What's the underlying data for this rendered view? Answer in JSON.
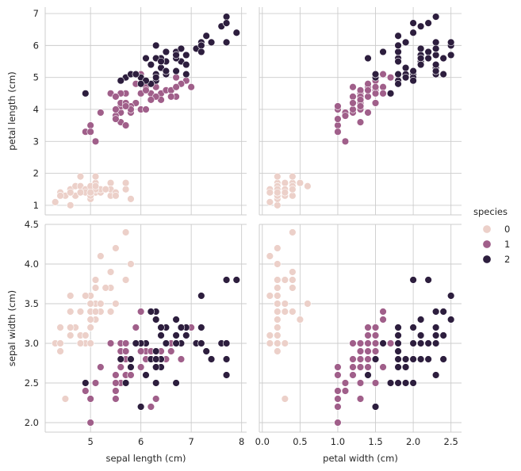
{
  "chart_data": {
    "type": "scatter",
    "legend": {
      "title": "species",
      "placement": "right",
      "entries": [
        {
          "label": "0",
          "color": "#ecd0c9"
        },
        {
          "label": "1",
          "color": "#a05f8a"
        },
        {
          "label": "2",
          "color": "#2d1e3e"
        }
      ]
    },
    "columns": [
      {
        "xlabel": "sepal length (cm)",
        "xlim": [
          4.1,
          8.1
        ],
        "xticks": [
          5,
          6,
          7,
          8
        ],
        "xtick_labels": [
          "5",
          "6",
          "7",
          "8"
        ]
      },
      {
        "xlabel": "petal width (cm)",
        "xlim": [
          -0.04,
          2.64
        ],
        "xticks": [
          0.0,
          0.5,
          1.0,
          1.5,
          2.0,
          2.5
        ],
        "xtick_labels": [
          "0.0",
          "0.5",
          "1.0",
          "1.5",
          "2.0",
          "2.5"
        ]
      }
    ],
    "rows": [
      {
        "ylabel": "petal length (cm)",
        "ylim": [
          0.7,
          7.2
        ],
        "yticks": [
          1,
          2,
          3,
          4,
          5,
          6,
          7
        ],
        "ytick_labels": [
          "1",
          "2",
          "3",
          "4",
          "5",
          "6",
          "7"
        ]
      },
      {
        "ylabel": "sepal width (cm)",
        "ylim": [
          1.88,
          4.5
        ],
        "yticks": [
          2.0,
          2.5,
          3.0,
          3.5,
          4.0,
          4.5
        ],
        "ytick_labels": [
          "2.0",
          "2.5",
          "3.0",
          "3.5",
          "4.0",
          "4.5"
        ]
      }
    ],
    "fields": [
      "sepal_length",
      "sepal_width",
      "petal_length",
      "petal_width",
      "species"
    ],
    "rows_data": [
      [
        5.1,
        3.5,
        1.4,
        0.2,
        0
      ],
      [
        4.9,
        3.0,
        1.4,
        0.2,
        0
      ],
      [
        4.7,
        3.2,
        1.3,
        0.2,
        0
      ],
      [
        4.6,
        3.1,
        1.5,
        0.2,
        0
      ],
      [
        5.0,
        3.6,
        1.4,
        0.2,
        0
      ],
      [
        5.4,
        3.9,
        1.7,
        0.4,
        0
      ],
      [
        4.6,
        3.4,
        1.4,
        0.3,
        0
      ],
      [
        5.0,
        3.4,
        1.5,
        0.2,
        0
      ],
      [
        4.4,
        2.9,
        1.4,
        0.2,
        0
      ],
      [
        4.9,
        3.1,
        1.5,
        0.1,
        0
      ],
      [
        5.4,
        3.7,
        1.5,
        0.2,
        0
      ],
      [
        4.8,
        3.4,
        1.6,
        0.2,
        0
      ],
      [
        4.8,
        3.0,
        1.4,
        0.1,
        0
      ],
      [
        4.3,
        3.0,
        1.1,
        0.1,
        0
      ],
      [
        5.8,
        4.0,
        1.2,
        0.2,
        0
      ],
      [
        5.7,
        4.4,
        1.5,
        0.4,
        0
      ],
      [
        5.4,
        3.9,
        1.3,
        0.4,
        0
      ],
      [
        5.1,
        3.5,
        1.4,
        0.3,
        0
      ],
      [
        5.7,
        3.8,
        1.7,
        0.3,
        0
      ],
      [
        5.1,
        3.8,
        1.5,
        0.3,
        0
      ],
      [
        5.4,
        3.4,
        1.7,
        0.2,
        0
      ],
      [
        5.1,
        3.7,
        1.5,
        0.4,
        0
      ],
      [
        4.6,
        3.6,
        1.0,
        0.2,
        0
      ],
      [
        5.1,
        3.3,
        1.7,
        0.5,
        0
      ],
      [
        4.8,
        3.4,
        1.9,
        0.2,
        0
      ],
      [
        5.0,
        3.0,
        1.6,
        0.2,
        0
      ],
      [
        5.0,
        3.4,
        1.6,
        0.4,
        0
      ],
      [
        5.2,
        3.5,
        1.5,
        0.2,
        0
      ],
      [
        5.2,
        3.4,
        1.4,
        0.2,
        0
      ],
      [
        4.7,
        3.2,
        1.6,
        0.2,
        0
      ],
      [
        4.8,
        3.1,
        1.6,
        0.2,
        0
      ],
      [
        5.4,
        3.4,
        1.5,
        0.4,
        0
      ],
      [
        5.2,
        4.1,
        1.5,
        0.1,
        0
      ],
      [
        5.5,
        4.2,
        1.4,
        0.2,
        0
      ],
      [
        4.9,
        3.1,
        1.5,
        0.2,
        0
      ],
      [
        5.0,
        3.2,
        1.2,
        0.2,
        0
      ],
      [
        5.5,
        3.5,
        1.3,
        0.2,
        0
      ],
      [
        4.9,
        3.6,
        1.4,
        0.1,
        0
      ],
      [
        4.4,
        3.0,
        1.3,
        0.2,
        0
      ],
      [
        5.1,
        3.4,
        1.5,
        0.2,
        0
      ],
      [
        5.0,
        3.5,
        1.3,
        0.3,
        0
      ],
      [
        4.5,
        2.3,
        1.3,
        0.3,
        0
      ],
      [
        4.4,
        3.2,
        1.3,
        0.2,
        0
      ],
      [
        5.0,
        3.5,
        1.6,
        0.6,
        0
      ],
      [
        5.1,
        3.8,
        1.9,
        0.4,
        0
      ],
      [
        4.8,
        3.0,
        1.4,
        0.3,
        0
      ],
      [
        5.1,
        3.8,
        1.6,
        0.2,
        0
      ],
      [
        4.6,
        3.2,
        1.4,
        0.2,
        0
      ],
      [
        5.3,
        3.7,
        1.5,
        0.2,
        0
      ],
      [
        5.0,
        3.3,
        1.4,
        0.2,
        0
      ],
      [
        7.0,
        3.2,
        4.7,
        1.4,
        1
      ],
      [
        6.4,
        3.2,
        4.5,
        1.5,
        1
      ],
      [
        6.9,
        3.1,
        4.9,
        1.5,
        1
      ],
      [
        5.5,
        2.3,
        4.0,
        1.3,
        1
      ],
      [
        6.5,
        2.8,
        4.6,
        1.5,
        1
      ],
      [
        5.7,
        2.8,
        4.5,
        1.3,
        1
      ],
      [
        6.3,
        3.3,
        4.7,
        1.6,
        1
      ],
      [
        4.9,
        2.4,
        3.3,
        1.0,
        1
      ],
      [
        6.6,
        2.9,
        4.6,
        1.3,
        1
      ],
      [
        5.2,
        2.7,
        3.9,
        1.4,
        1
      ],
      [
        5.0,
        2.0,
        3.5,
        1.0,
        1
      ],
      [
        5.9,
        3.0,
        4.2,
        1.5,
        1
      ],
      [
        6.0,
        2.2,
        4.0,
        1.0,
        1
      ],
      [
        6.1,
        2.9,
        4.7,
        1.4,
        1
      ],
      [
        5.6,
        2.9,
        3.6,
        1.3,
        1
      ],
      [
        6.7,
        3.1,
        4.4,
        1.4,
        1
      ],
      [
        5.6,
        3.0,
        4.5,
        1.5,
        1
      ],
      [
        5.8,
        2.7,
        4.1,
        1.0,
        1
      ],
      [
        6.2,
        2.2,
        4.5,
        1.5,
        1
      ],
      [
        5.6,
        2.5,
        3.9,
        1.1,
        1
      ],
      [
        5.9,
        3.2,
        4.8,
        1.8,
        1
      ],
      [
        6.1,
        2.8,
        4.0,
        1.3,
        1
      ],
      [
        6.3,
        2.5,
        4.9,
        1.5,
        1
      ],
      [
        6.1,
        2.8,
        4.7,
        1.2,
        1
      ],
      [
        6.4,
        2.9,
        4.3,
        1.3,
        1
      ],
      [
        6.6,
        3.0,
        4.4,
        1.4,
        1
      ],
      [
        6.8,
        2.8,
        4.8,
        1.4,
        1
      ],
      [
        6.7,
        3.0,
        5.0,
        1.7,
        1
      ],
      [
        6.0,
        2.9,
        4.5,
        1.5,
        1
      ],
      [
        5.7,
        2.6,
        3.5,
        1.0,
        1
      ],
      [
        5.5,
        2.4,
        3.8,
        1.1,
        1
      ],
      [
        5.5,
        2.4,
        3.7,
        1.0,
        1
      ],
      [
        5.8,
        2.7,
        3.9,
        1.2,
        1
      ],
      [
        6.0,
        2.7,
        5.1,
        1.6,
        1
      ],
      [
        5.4,
        3.0,
        4.5,
        1.5,
        1
      ],
      [
        6.0,
        3.4,
        4.5,
        1.6,
        1
      ],
      [
        6.7,
        3.1,
        4.7,
        1.5,
        1
      ],
      [
        6.3,
        2.3,
        4.4,
        1.3,
        1
      ],
      [
        5.6,
        3.0,
        4.1,
        1.3,
        1
      ],
      [
        5.5,
        2.5,
        4.0,
        1.3,
        1
      ],
      [
        5.5,
        2.6,
        4.4,
        1.2,
        1
      ],
      [
        6.1,
        3.0,
        4.6,
        1.4,
        1
      ],
      [
        5.8,
        2.6,
        4.0,
        1.2,
        1
      ],
      [
        5.0,
        2.3,
        3.3,
        1.0,
        1
      ],
      [
        5.6,
        2.7,
        4.2,
        1.3,
        1
      ],
      [
        5.7,
        3.0,
        4.2,
        1.2,
        1
      ],
      [
        5.7,
        2.9,
        4.2,
        1.3,
        1
      ],
      [
        6.2,
        2.9,
        4.3,
        1.3,
        1
      ],
      [
        5.1,
        2.5,
        3.0,
        1.1,
        1
      ],
      [
        5.7,
        2.8,
        4.1,
        1.3,
        1
      ],
      [
        6.3,
        3.3,
        6.0,
        2.5,
        2
      ],
      [
        5.8,
        2.7,
        5.1,
        1.9,
        2
      ],
      [
        7.1,
        3.0,
        5.9,
        2.1,
        2
      ],
      [
        6.3,
        2.9,
        5.6,
        1.8,
        2
      ],
      [
        6.5,
        3.0,
        5.8,
        2.2,
        2
      ],
      [
        7.6,
        3.0,
        6.6,
        2.1,
        2
      ],
      [
        4.9,
        2.5,
        4.5,
        1.7,
        2
      ],
      [
        7.3,
        2.9,
        6.3,
        1.8,
        2
      ],
      [
        6.7,
        2.5,
        5.8,
        1.8,
        2
      ],
      [
        7.2,
        3.6,
        6.1,
        2.5,
        2
      ],
      [
        6.5,
        3.2,
        5.1,
        2.0,
        2
      ],
      [
        6.4,
        2.7,
        5.3,
        1.9,
        2
      ],
      [
        6.8,
        3.0,
        5.5,
        2.1,
        2
      ],
      [
        5.7,
        2.5,
        5.0,
        2.0,
        2
      ],
      [
        5.8,
        2.8,
        5.1,
        2.4,
        2
      ],
      [
        6.4,
        3.2,
        5.3,
        2.3,
        2
      ],
      [
        6.5,
        3.0,
        5.5,
        1.8,
        2
      ],
      [
        7.7,
        3.8,
        6.7,
        2.2,
        2
      ],
      [
        7.7,
        2.6,
        6.9,
        2.3,
        2
      ],
      [
        6.0,
        2.2,
        5.0,
        1.5,
        2
      ],
      [
        6.9,
        3.2,
        5.7,
        2.3,
        2
      ],
      [
        5.6,
        2.8,
        4.9,
        2.0,
        2
      ],
      [
        7.7,
        2.8,
        6.7,
        2.0,
        2
      ],
      [
        6.3,
        2.7,
        4.9,
        1.8,
        2
      ],
      [
        6.7,
        3.3,
        5.7,
        2.1,
        2
      ],
      [
        7.2,
        3.2,
        6.0,
        1.8,
        2
      ],
      [
        6.2,
        2.8,
        4.8,
        1.8,
        2
      ],
      [
        6.1,
        3.0,
        4.9,
        1.8,
        2
      ],
      [
        6.4,
        2.8,
        5.6,
        2.1,
        2
      ],
      [
        7.2,
        3.0,
        5.8,
        1.6,
        2
      ],
      [
        7.4,
        2.8,
        6.1,
        1.9,
        2
      ],
      [
        7.9,
        3.8,
        6.4,
        2.0,
        2
      ],
      [
        6.4,
        2.8,
        5.6,
        2.2,
        2
      ],
      [
        6.3,
        2.8,
        5.1,
        1.5,
        2
      ],
      [
        6.1,
        2.6,
        5.6,
        1.4,
        2
      ],
      [
        7.7,
        3.0,
        6.1,
        2.3,
        2
      ],
      [
        6.3,
        3.4,
        5.6,
        2.4,
        2
      ],
      [
        6.4,
        3.1,
        5.5,
        1.8,
        2
      ],
      [
        6.0,
        3.0,
        4.8,
        1.8,
        2
      ],
      [
        6.9,
        3.1,
        5.4,
        2.1,
        2
      ],
      [
        6.7,
        3.1,
        5.6,
        2.4,
        2
      ],
      [
        6.9,
        3.1,
        5.1,
        2.3,
        2
      ],
      [
        5.8,
        2.7,
        5.1,
        1.9,
        2
      ],
      [
        6.8,
        3.2,
        5.9,
        2.3,
        2
      ],
      [
        6.7,
        3.3,
        5.7,
        2.5,
        2
      ],
      [
        6.7,
        3.0,
        5.2,
        2.3,
        2
      ],
      [
        6.3,
        2.5,
        5.0,
        1.9,
        2
      ],
      [
        6.5,
        3.0,
        5.2,
        2.0,
        2
      ],
      [
        6.2,
        3.4,
        5.4,
        2.3,
        2
      ],
      [
        5.9,
        3.0,
        5.1,
        1.8,
        2
      ]
    ]
  }
}
